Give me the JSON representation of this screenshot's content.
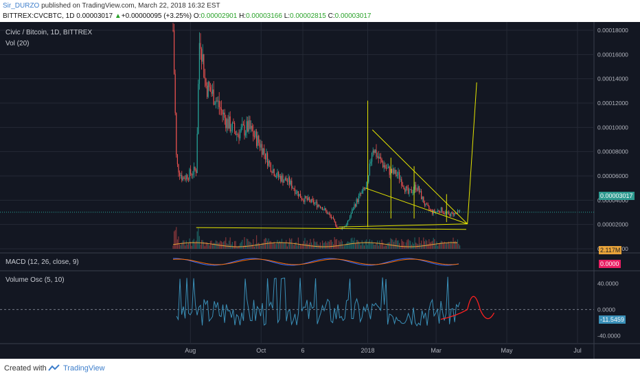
{
  "header": {
    "author": "Sir_DURZO",
    "published": " published on TradingView.com, March 22, 2018 16:32 EST",
    "symbol": "BITTREX:CVCBTC, 1D",
    "last": "0.00003017",
    "change": "+0.00000095 (+3.25%)",
    "o_label": "O:",
    "o": "0.00002901",
    "h_label": "H:",
    "h": "0.00003166",
    "l_label": "L:",
    "l": "0.00002815",
    "c_label": "C:",
    "c": "0.00003017"
  },
  "chart_overlay": {
    "title": "Civic / Bitcoin, 1D, BITTREX",
    "vol_label": "Vol (20)",
    "macd_label": "MACD (12, 26, close, 9)",
    "vosc_label": "Volume Osc (5, 10)",
    "price_tag": "0.00003017",
    "vol_tag": "2.117M",
    "macd_tag": "0.0000",
    "vosc_tag": "-11.5459"
  },
  "footer": {
    "created_with": "Created with",
    "brand": "TradingView"
  },
  "colors": {
    "background": "#131722",
    "up": "#26a69a",
    "down": "#ef5350",
    "drawing": "#e6e600",
    "annotation": "#ff2020",
    "vosc": "#3a90b8",
    "grid": "#252a36"
  },
  "chart_data": [
    {
      "type": "candlestick",
      "title": "Civic / Bitcoin, 1D, BITTREX",
      "y_axis_ticks": [
        "0.00000000",
        "0.00002000",
        "0.00004000",
        "0.00006000",
        "0.00008000",
        "0.00010000",
        "0.00012000",
        "0.00014000",
        "0.00016000",
        "0.00018000"
      ],
      "x_axis_ticks": [
        "Aug",
        "Oct",
        "6",
        "2018",
        "Mar",
        "May",
        "Jul"
      ],
      "ylim": [
        0,
        0.00018
      ],
      "last_price": 3.017e-05,
      "close_trajectory": [
        {
          "date": "2017-07-17",
          "value": 0.00018
        },
        {
          "date": "2017-07-20",
          "value": 7e-05
        },
        {
          "date": "2017-07-25",
          "value": 5.8e-05
        },
        {
          "date": "2017-08-01",
          "value": 6.2e-05
        },
        {
          "date": "2017-08-06",
          "value": 6.5e-05
        },
        {
          "date": "2017-08-09",
          "value": 0.00018
        },
        {
          "date": "2017-08-14",
          "value": 0.000135
        },
        {
          "date": "2017-08-22",
          "value": 0.000125
        },
        {
          "date": "2017-09-01",
          "value": 0.000105
        },
        {
          "date": "2017-09-10",
          "value": 9.5e-05
        },
        {
          "date": "2017-09-20",
          "value": 0.0001
        },
        {
          "date": "2017-10-01",
          "value": 8.5e-05
        },
        {
          "date": "2017-10-08",
          "value": 7e-05
        },
        {
          "date": "2017-10-15",
          "value": 6e-05
        },
        {
          "date": "2017-10-25",
          "value": 5.5e-05
        },
        {
          "date": "2017-11-05",
          "value": 4.2e-05
        },
        {
          "date": "2017-11-15",
          "value": 3.8e-05
        },
        {
          "date": "2017-11-22",
          "value": 3.5e-05
        },
        {
          "date": "2017-12-01",
          "value": 2.5e-05
        },
        {
          "date": "2017-12-07",
          "value": 1.6e-05
        },
        {
          "date": "2017-12-14",
          "value": 2e-05
        },
        {
          "date": "2017-12-20",
          "value": 3.5e-05
        },
        {
          "date": "2017-12-26",
          "value": 4.5e-05
        },
        {
          "date": "2018-01-01",
          "value": 5.2e-05
        },
        {
          "date": "2018-01-05",
          "value": 8.5e-05
        },
        {
          "date": "2018-01-10",
          "value": 7.5e-05
        },
        {
          "date": "2018-01-18",
          "value": 6.5e-05
        },
        {
          "date": "2018-01-28",
          "value": 6e-05
        },
        {
          "date": "2018-02-05",
          "value": 4.5e-05
        },
        {
          "date": "2018-02-12",
          "value": 5.2e-05
        },
        {
          "date": "2018-02-20",
          "value": 3.5e-05
        },
        {
          "date": "2018-02-26",
          "value": 3e-05
        },
        {
          "date": "2018-03-05",
          "value": 3.2e-05
        },
        {
          "date": "2018-03-12",
          "value": 2.8e-05
        },
        {
          "date": "2018-03-22",
          "value": 3.017e-05
        }
      ]
    },
    {
      "type": "bar",
      "title": "Vol (20)",
      "last_value": "2.117M"
    },
    {
      "type": "line",
      "title": "MACD (12, 26, close, 9)",
      "last_value": 0.0
    },
    {
      "type": "line",
      "title": "Volume Osc (5, 10)",
      "y_axis_ticks": [
        "40.0000",
        "0.0000",
        "-40.0000"
      ],
      "ylim": [
        -50,
        55
      ],
      "last_value": -11.5459
    }
  ]
}
